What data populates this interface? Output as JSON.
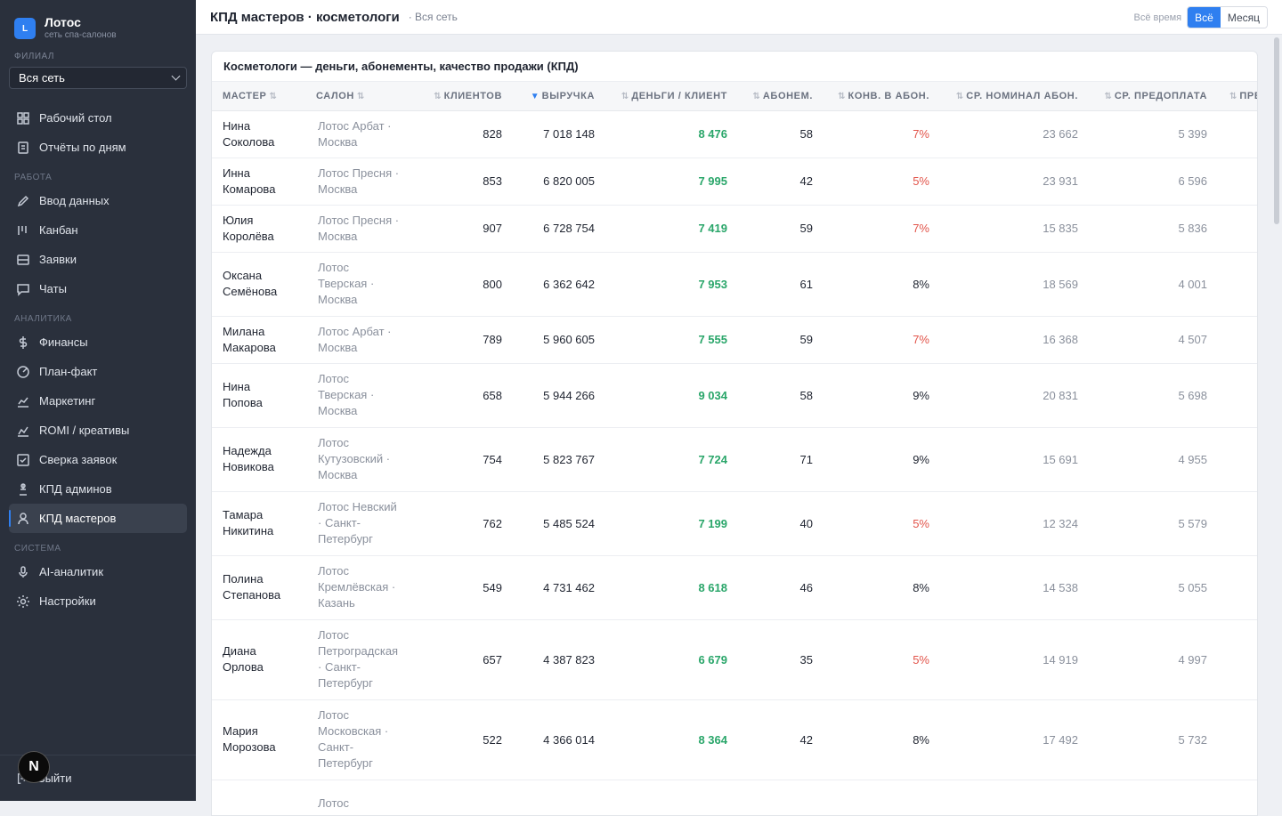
{
  "brand": {
    "logo_letter": "L",
    "name": "Лотос",
    "subtitle": "сеть спа-салонов"
  },
  "branch": {
    "label": "ФИЛИАЛ",
    "value": "Вся сеть"
  },
  "nav": {
    "top": [
      {
        "label": "Рабочий стол",
        "icon": "dashboard-icon"
      },
      {
        "label": "Отчёты по дням",
        "icon": "report-icon"
      }
    ],
    "sections": [
      {
        "title": "РАБОТА",
        "items": [
          {
            "label": "Ввод данных",
            "icon": "pencil-icon"
          },
          {
            "label": "Канбан",
            "icon": "kanban-icon"
          },
          {
            "label": "Заявки",
            "icon": "inbox-icon"
          },
          {
            "label": "Чаты",
            "icon": "chat-icon"
          }
        ]
      },
      {
        "title": "АНАЛИТИКА",
        "items": [
          {
            "label": "Финансы",
            "icon": "dollar-icon"
          },
          {
            "label": "План-факт",
            "icon": "target-icon"
          },
          {
            "label": "Маркетинг",
            "icon": "chart-line-icon"
          },
          {
            "label": "ROMI / креативы",
            "icon": "trend-icon"
          },
          {
            "label": "Сверка заявок",
            "icon": "check-square-icon"
          },
          {
            "label": "КПД админов",
            "icon": "admin-icon"
          },
          {
            "label": "КПД мастеров",
            "icon": "user-icon",
            "active": true
          }
        ]
      },
      {
        "title": "СИСТЕМА",
        "items": [
          {
            "label": "AI-аналитик",
            "icon": "mic-icon"
          },
          {
            "label": "Настройки",
            "icon": "gear-icon"
          }
        ]
      }
    ],
    "logout": "Выйти",
    "badge": "N"
  },
  "header": {
    "title": "КПД мастеров · косметологи",
    "scope": "· Вся сеть"
  },
  "period": {
    "label": "Всё время",
    "options": [
      "Всё",
      "Месяц"
    ],
    "selected": "Всё"
  },
  "card": {
    "title": "Косметологи — деньги, абонементы, качество продажи (КПД)",
    "columns": [
      "Мастер",
      "Салон",
      "Клиентов",
      "Выручка",
      "Деньги / клиент",
      "Абонем.",
      "Конв. в абон.",
      "Ср. номинал абон.",
      "Ср. предоплата",
      "Пред"
    ],
    "sorted_column": "Выручка",
    "rows": [
      {
        "name": [
          "Нина",
          "Соколова"
        ],
        "salon": [
          "Лотос Арбат ·",
          "Москва"
        ],
        "clients": "828",
        "revenue": "7 018 148",
        "per_client": "8 476",
        "subs": "58",
        "conv": "7%",
        "conv_low": true,
        "avg_nominal": "23 662",
        "avg_prepay": "5 399"
      },
      {
        "name": [
          "Инна",
          "Комарова"
        ],
        "salon": [
          "Лотос Пресня ·",
          "Москва"
        ],
        "clients": "853",
        "revenue": "6 820 005",
        "per_client": "7 995",
        "subs": "42",
        "conv": "5%",
        "conv_low": true,
        "avg_nominal": "23 931",
        "avg_prepay": "6 596"
      },
      {
        "name": [
          "Юлия",
          "Королёва"
        ],
        "salon": [
          "Лотос Пресня ·",
          "Москва"
        ],
        "clients": "907",
        "revenue": "6 728 754",
        "per_client": "7 419",
        "subs": "59",
        "conv": "7%",
        "conv_low": true,
        "avg_nominal": "15 835",
        "avg_prepay": "5 836"
      },
      {
        "name": [
          "Оксана",
          "Семёнова"
        ],
        "salon": [
          "Лотос",
          "Тверская ·",
          "Москва"
        ],
        "clients": "800",
        "revenue": "6 362 642",
        "per_client": "7 953",
        "subs": "61",
        "conv": "8%",
        "conv_low": false,
        "avg_nominal": "18 569",
        "avg_prepay": "4 001"
      },
      {
        "name": [
          "Милана",
          "Макарова"
        ],
        "salon": [
          "Лотос Арбат ·",
          "Москва"
        ],
        "clients": "789",
        "revenue": "5 960 605",
        "per_client": "7 555",
        "subs": "59",
        "conv": "7%",
        "conv_low": true,
        "avg_nominal": "16 368",
        "avg_prepay": "4 507"
      },
      {
        "name": [
          "Нина",
          "Попова"
        ],
        "salon": [
          "Лотос",
          "Тверская ·",
          "Москва"
        ],
        "clients": "658",
        "revenue": "5 944 266",
        "per_client": "9 034",
        "subs": "58",
        "conv": "9%",
        "conv_low": false,
        "avg_nominal": "20 831",
        "avg_prepay": "5 698"
      },
      {
        "name": [
          "Надежда",
          "Новикова"
        ],
        "salon": [
          "Лотос",
          "Кутузовский ·",
          "Москва"
        ],
        "clients": "754",
        "revenue": "5 823 767",
        "per_client": "7 724",
        "subs": "71",
        "conv": "9%",
        "conv_low": false,
        "avg_nominal": "15 691",
        "avg_prepay": "4 955"
      },
      {
        "name": [
          "Тамара",
          "Никитина"
        ],
        "salon": [
          "Лотос Невский",
          "· Санкт-",
          "Петербург"
        ],
        "clients": "762",
        "revenue": "5 485 524",
        "per_client": "7 199",
        "subs": "40",
        "conv": "5%",
        "conv_low": true,
        "avg_nominal": "12 324",
        "avg_prepay": "5 579"
      },
      {
        "name": [
          "Полина",
          "Степанова"
        ],
        "salon": [
          "Лотос",
          "Кремлёвская ·",
          "Казань"
        ],
        "clients": "549",
        "revenue": "4 731 462",
        "per_client": "8 618",
        "subs": "46",
        "conv": "8%",
        "conv_low": false,
        "avg_nominal": "14 538",
        "avg_prepay": "5 055"
      },
      {
        "name": [
          "Диана",
          "Орлова"
        ],
        "salon": [
          "Лотос",
          "Петроградская",
          "· Санкт-",
          "Петербург"
        ],
        "clients": "657",
        "revenue": "4 387 823",
        "per_client": "6 679",
        "subs": "35",
        "conv": "5%",
        "conv_low": true,
        "avg_nominal": "14 919",
        "avg_prepay": "4 997"
      },
      {
        "name": [
          "Мария",
          "Морозова"
        ],
        "salon": [
          "Лотос",
          "Московская ·",
          "Санкт-",
          "Петербург"
        ],
        "clients": "522",
        "revenue": "4 366 014",
        "per_client": "8 364",
        "subs": "42",
        "conv": "8%",
        "conv_low": false,
        "avg_nominal": "17 492",
        "avg_prepay": "5 732"
      },
      {
        "name": [
          "",
          ""
        ],
        "salon": [
          "Лотос"
        ],
        "clients": "",
        "revenue": "",
        "per_client": "",
        "subs": "",
        "conv": "",
        "conv_low": false,
        "avg_nominal": "",
        "avg_prepay": ""
      }
    ]
  },
  "colors": {
    "accent": "#2f7ff0",
    "positive": "#2aa66a",
    "negative": "#e2544a",
    "sidebar": "#2a303c"
  }
}
